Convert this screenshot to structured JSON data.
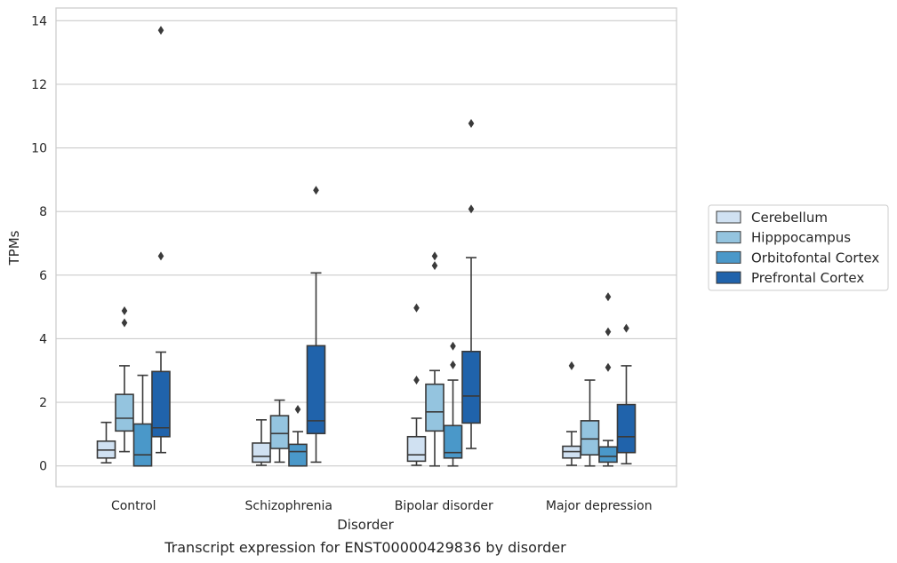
{
  "chart_data": {
    "type": "box",
    "title": "",
    "caption": "Transcript expression for ENST00000429836 by disorder",
    "xlabel": "Disorder",
    "ylabel": "TPMs",
    "ylim": [
      -0.65,
      14.4
    ],
    "yticks": [
      0,
      2,
      4,
      6,
      8,
      10,
      12,
      14
    ],
    "grid": true,
    "legend_position": "right",
    "categories": [
      "Control",
      "Schizophrenia",
      "Bipolar disorder",
      "Major depression"
    ],
    "series": [
      {
        "name": "Cerebellum",
        "color": "#d0e1f2",
        "boxes": [
          {
            "whislo": 0.1,
            "q1": 0.25,
            "med": 0.5,
            "q3": 0.78,
            "whishi": 1.37,
            "fliers": []
          },
          {
            "whislo": 0.02,
            "q1": 0.12,
            "med": 0.3,
            "q3": 0.72,
            "whishi": 1.45,
            "fliers": []
          },
          {
            "whislo": 0.02,
            "q1": 0.15,
            "med": 0.35,
            "q3": 0.92,
            "whishi": 1.5,
            "fliers": [
              2.7,
              4.97
            ]
          },
          {
            "whislo": 0.02,
            "q1": 0.25,
            "med": 0.45,
            "q3": 0.62,
            "whishi": 1.08,
            "fliers": [
              3.15
            ]
          }
        ]
      },
      {
        "name": "Hipppocampus",
        "color": "#94c4df",
        "boxes": [
          {
            "whislo": 0.45,
            "q1": 1.1,
            "med": 1.5,
            "q3": 2.25,
            "whishi": 3.15,
            "fliers": [
              4.5,
              4.88
            ]
          },
          {
            "whislo": 0.12,
            "q1": 0.55,
            "med": 1.02,
            "q3": 1.58,
            "whishi": 2.07,
            "fliers": []
          },
          {
            "whislo": 0.0,
            "q1": 1.1,
            "med": 1.7,
            "q3": 2.57,
            "whishi": 3.0,
            "fliers": [
              6.3,
              6.6
            ]
          },
          {
            "whislo": 0.0,
            "q1": 0.35,
            "med": 0.85,
            "q3": 1.42,
            "whishi": 2.7,
            "fliers": []
          }
        ]
      },
      {
        "name": "Orbitofontal Cortex",
        "color": "#4a98c9",
        "boxes": [
          {
            "whislo": 0.0,
            "q1": 0.0,
            "med": 0.35,
            "q3": 1.32,
            "whishi": 2.85,
            "fliers": []
          },
          {
            "whislo": 0.0,
            "q1": 0.0,
            "med": 0.45,
            "q3": 0.68,
            "whishi": 1.08,
            "fliers": [
              1.78
            ]
          },
          {
            "whislo": 0.0,
            "q1": 0.25,
            "med": 0.42,
            "q3": 1.27,
            "whishi": 2.7,
            "fliers": [
              3.18,
              3.77
            ]
          },
          {
            "whislo": 0.0,
            "q1": 0.12,
            "med": 0.3,
            "q3": 0.6,
            "whishi": 0.8,
            "fliers": [
              3.1,
              4.22,
              5.32
            ]
          }
        ]
      },
      {
        "name": "Prefrontal Cortex",
        "color": "#2063ab",
        "boxes": [
          {
            "whislo": 0.42,
            "q1": 0.92,
            "med": 1.2,
            "q3": 2.97,
            "whishi": 3.58,
            "fliers": [
              6.6,
              13.7
            ]
          },
          {
            "whislo": 0.12,
            "q1": 1.02,
            "med": 1.42,
            "q3": 3.78,
            "whishi": 6.07,
            "fliers": [
              8.67
            ]
          },
          {
            "whislo": 0.55,
            "q1": 1.35,
            "med": 2.2,
            "q3": 3.6,
            "whishi": 6.55,
            "fliers": [
              8.08,
              10.77
            ]
          },
          {
            "whislo": 0.07,
            "q1": 0.42,
            "med": 0.92,
            "q3": 1.93,
            "whishi": 3.15,
            "fliers": [
              4.33
            ]
          }
        ]
      }
    ]
  }
}
